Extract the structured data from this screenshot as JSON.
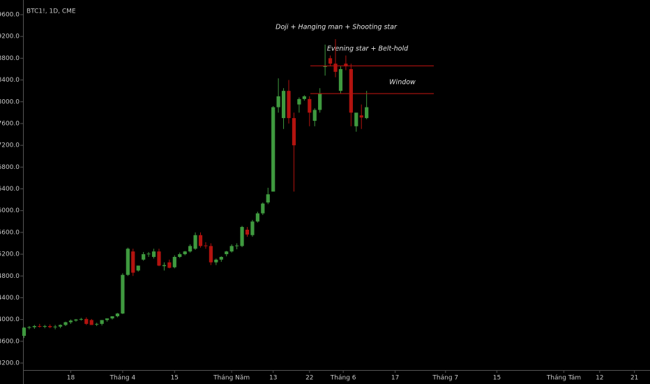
{
  "chart_data": {
    "type": "candlestick",
    "title": "BTC1!, 1D, CME",
    "up_color": "#3f9a3f",
    "down_color": "#b3130f",
    "level_color": "#b3130f",
    "ylim": [
      3200,
      9600
    ],
    "yticks": [
      {
        "value": 3200,
        "label": "3200.0"
      },
      {
        "value": 3600,
        "label": "3600.0"
      },
      {
        "value": 4000,
        "label": "4000.0"
      },
      {
        "value": 4400,
        "label": "4400.0"
      },
      {
        "value": 4800,
        "label": "4800.0"
      },
      {
        "value": 5200,
        "label": "5200.0"
      },
      {
        "value": 5600,
        "label": "5600.0"
      },
      {
        "value": 6000,
        "label": "6000.0"
      },
      {
        "value": 6400,
        "label": "6400.0"
      },
      {
        "value": 6800,
        "label": "6800.0"
      },
      {
        "value": 7200,
        "label": "7200.0"
      },
      {
        "value": 7600,
        "label": "7600.0"
      },
      {
        "value": 8000,
        "label": "8000.0"
      },
      {
        "value": 8400,
        "label": "8400.0"
      },
      {
        "value": 8800,
        "label": "8800.0"
      },
      {
        "value": 9200,
        "label": "9200.0"
      },
      {
        "value": 9600,
        "label": "9600.0"
      }
    ],
    "xlim": [
      -0.2,
      120.6
    ],
    "xticks": [
      {
        "value": 9,
        "label": "18"
      },
      {
        "value": 19,
        "label": "Tháng 4"
      },
      {
        "value": 29,
        "label": "15"
      },
      {
        "value": 40,
        "label": "Tháng Năm"
      },
      {
        "value": 48,
        "label": "13"
      },
      {
        "value": 55,
        "label": "22"
      },
      {
        "value": 61.5,
        "label": "Tháng 6"
      },
      {
        "value": 71.5,
        "label": "17"
      },
      {
        "value": 81.2,
        "label": "Tháng 7"
      },
      {
        "value": 91.1,
        "label": "15"
      },
      {
        "value": 104,
        "label": "Tháng Tám"
      },
      {
        "value": 110.9,
        "label": "12"
      },
      {
        "value": 117.6,
        "label": "21"
      }
    ],
    "open": [
      3700,
      3850,
      3860,
      3880,
      3870,
      3880,
      3860,
      3870,
      3900,
      3950,
      3980,
      4000,
      4010,
      3990,
      3910,
      3920,
      3990,
      4020,
      4060,
      4110,
      4820,
      5250,
      4900,
      5100,
      5200,
      5150,
      5250,
      4980,
      5050,
      4960,
      5150,
      5200,
      5250,
      5300,
      5550,
      5360,
      5350,
      5050,
      5100,
      5200,
      5250,
      5350,
      5350,
      5650,
      5550,
      5800,
      5950,
      6150,
      6350,
      7900,
      7700,
      8200,
      7700,
      7950,
      8050,
      8050,
      7650,
      7850,
      8640,
      8800,
      8700,
      8200,
      8700,
      8600,
      7550,
      7750,
      7700
    ],
    "high": [
      3860,
      3880,
      3900,
      3920,
      3900,
      3910,
      3900,
      3910,
      3960,
      4000,
      4010,
      4030,
      4040,
      4010,
      3940,
      3960,
      4010,
      4060,
      4120,
      4850,
      5320,
      5300,
      4990,
      5240,
      5240,
      5300,
      5300,
      5050,
      5100,
      5180,
      5230,
      5260,
      5380,
      5600,
      5600,
      5420,
      5400,
      5120,
      5160,
      5260,
      5380,
      5400,
      5720,
      5700,
      5830,
      5980,
      6150,
      6420,
      7920,
      8430,
      8250,
      8400,
      7800,
      8080,
      8120,
      8100,
      7880,
      8250,
      9050,
      8850,
      9150,
      8650,
      8850,
      8700,
      7780,
      7950,
      8200
    ],
    "low": [
      3660,
      3820,
      3830,
      3850,
      3840,
      3840,
      3820,
      3840,
      3880,
      3920,
      3960,
      3980,
      3900,
      3900,
      3880,
      3890,
      3960,
      4000,
      4040,
      4100,
      4800,
      4800,
      4880,
      5080,
      5150,
      5120,
      4980,
      4900,
      4940,
      4940,
      5130,
      5180,
      5230,
      5280,
      5320,
      5300,
      5000,
      5000,
      5060,
      5160,
      5230,
      5290,
      5330,
      5520,
      5520,
      5780,
      5920,
      6120,
      6350,
      7800,
      7500,
      7600,
      6350,
      7800,
      8020,
      7550,
      7550,
      7800,
      8480,
      8650,
      8450,
      8150,
      8580,
      7550,
      7450,
      7500,
      7680
    ],
    "close": [
      3850,
      3860,
      3880,
      3870,
      3880,
      3860,
      3870,
      3900,
      3950,
      3980,
      4000,
      4010,
      3920,
      3900,
      3920,
      3990,
      4020,
      4060,
      4110,
      4820,
      5300,
      4860,
      4990,
      5200,
      5210,
      5250,
      4990,
      5000,
      4950,
      5150,
      5200,
      5250,
      5350,
      5550,
      5350,
      5350,
      5050,
      5100,
      5150,
      5250,
      5350,
      5360,
      5700,
      5560,
      5800,
      5950,
      6130,
      6300,
      7900,
      8100,
      8200,
      7700,
      7200,
      8050,
      8100,
      7800,
      7850,
      8150,
      8660,
      8700,
      8550,
      8600,
      8650,
      7800,
      7800,
      7710,
      7900
    ],
    "levels": [
      8660,
      8150
    ],
    "annotations": [
      "Doji + Hanging man + Shooting star",
      "Evening star + Belt-hold",
      "Window"
    ]
  }
}
